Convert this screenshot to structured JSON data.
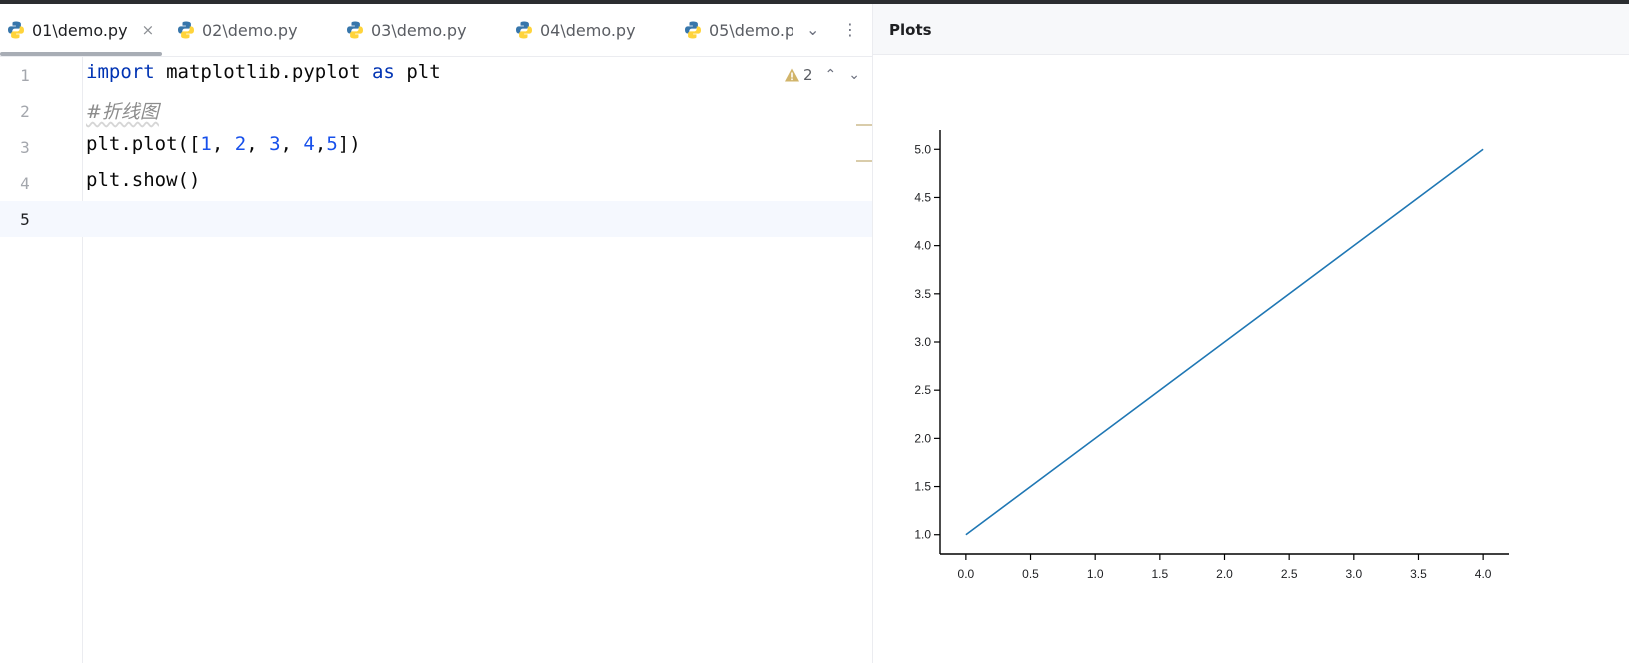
{
  "tabs": [
    {
      "label": "01\\demo.py",
      "active": true
    },
    {
      "label": "02\\demo.py",
      "active": false
    },
    {
      "label": "03\\demo.py",
      "active": false
    },
    {
      "label": "04\\demo.py",
      "active": false
    },
    {
      "label": "05\\demo.p",
      "active": false
    }
  ],
  "tab_close_glyph": "×",
  "tab_menu": {
    "dropdown_glyph": "⌄",
    "more_glyph": "⋮"
  },
  "editor": {
    "lines": [
      {
        "number": "1",
        "tokens": [
          {
            "t": "kw",
            "v": "import"
          },
          {
            "t": "tx",
            "v": " matplotlib.pyplot "
          },
          {
            "t": "kw",
            "v": "as"
          },
          {
            "t": "tx",
            "v": " plt"
          }
        ]
      },
      {
        "number": "2",
        "tokens": [
          {
            "t": "cm",
            "v": "#折线图"
          }
        ]
      },
      {
        "number": "3",
        "tokens": [
          {
            "t": "tx",
            "v": "plt.plot(["
          },
          {
            "t": "num",
            "v": "1"
          },
          {
            "t": "tx",
            "v": ", "
          },
          {
            "t": "num",
            "v": "2"
          },
          {
            "t": "tx",
            "v": ", "
          },
          {
            "t": "num",
            "v": "3"
          },
          {
            "t": "tx",
            "v": ", "
          },
          {
            "t": "num",
            "v": "4"
          },
          {
            "t": "tx",
            "v": ","
          },
          {
            "t": "num",
            "v": "5"
          },
          {
            "t": "tx",
            "v": "])"
          }
        ]
      },
      {
        "number": "4",
        "tokens": [
          {
            "t": "tx",
            "v": "plt.show()"
          }
        ]
      },
      {
        "number": "5",
        "tokens": []
      }
    ],
    "current_line": "5",
    "inspection": {
      "warning_count": "2",
      "up_glyph": "⌃",
      "down_glyph": "⌄"
    }
  },
  "plots": {
    "title": "Plots"
  },
  "chart_data": {
    "type": "line",
    "x": [
      0,
      1,
      2,
      3,
      4
    ],
    "series": [
      {
        "values": [
          1,
          2,
          3,
          4,
          5
        ],
        "color": "#1f77b4"
      }
    ],
    "title": "",
    "xlabel": "",
    "ylabel": "",
    "xlim": [
      -0.2,
      4.2
    ],
    "ylim": [
      0.8,
      5.2
    ],
    "xticks": [
      "0.0",
      "0.5",
      "1.0",
      "1.5",
      "2.0",
      "2.5",
      "3.0",
      "3.5",
      "4.0"
    ],
    "yticks": [
      "1.0",
      "1.5",
      "2.0",
      "2.5",
      "3.0",
      "3.5",
      "4.0",
      "4.5",
      "5.0"
    ],
    "grid": false
  },
  "colors": {
    "keyword": "#0033b3",
    "number": "#1750eb",
    "comment": "#8c8c8c",
    "line_series": "#1f77b4"
  }
}
